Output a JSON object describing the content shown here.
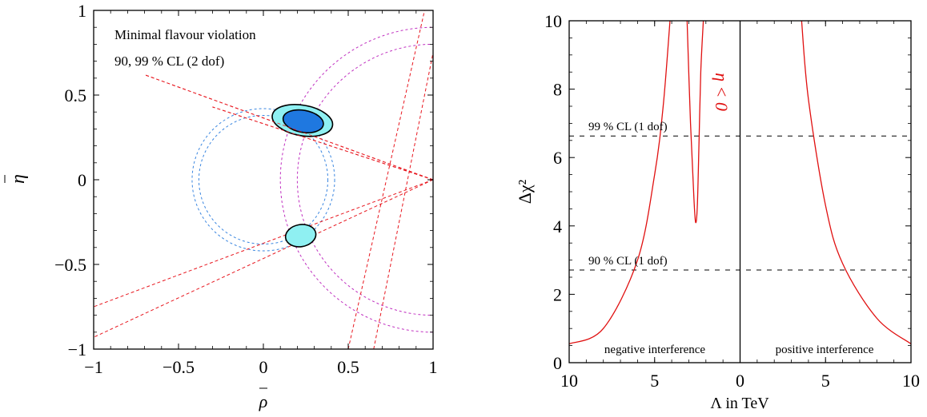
{
  "chart_data": [
    {
      "type": "scatter",
      "xlabel": "ρ",
      "ylabel": "η",
      "xlim": [
        -1,
        1
      ],
      "ylim": [
        -1,
        1
      ],
      "x_ticks": [
        -1,
        -0.5,
        0,
        0.5,
        1
      ],
      "y_ticks": [
        -1,
        -0.5,
        0,
        0.5,
        1
      ],
      "x_tick_labels": [
        "−1",
        "−0.5",
        "0",
        "0.5",
        "1"
      ],
      "y_tick_labels": [
        "−1",
        "−0.5",
        "0",
        "0.5",
        "1"
      ],
      "annotations": [
        "Minimal flavour violation",
        "90,  99 % CL (2 dof)"
      ],
      "grid": false,
      "colors": {
        "inner_region": "#1f78e0",
        "outer_region": "#8ff0f2",
        "constraint_red": "#e8171f",
        "constraint_blue": "#3a86e0",
        "constraint_magenta": "#c030c0"
      },
      "regions": [
        {
          "cl": "99%",
          "center": [
            0.23,
            0.35
          ],
          "rx": 0.18,
          "ry": 0.09
        },
        {
          "cl": "90%",
          "center": [
            0.235,
            0.345
          ],
          "rx": 0.12,
          "ry": 0.065
        },
        {
          "cl": "99%",
          "center": [
            0.22,
            -0.33
          ],
          "rx": 0.09,
          "ry": 0.065
        }
      ],
      "constraint_lines": [
        {
          "from": [
            1,
            0
          ],
          "to": [
            -0.7,
            0.62
          ]
        },
        {
          "from": [
            1,
            0
          ],
          "to": [
            -0.3,
            0.43
          ]
        },
        {
          "from": [
            1,
            0
          ],
          "to": [
            -1,
            -0.75
          ]
        },
        {
          "from": [
            1,
            0
          ],
          "to": [
            -1,
            -0.93
          ]
        },
        {
          "from": [
            0.5,
            -1
          ],
          "to": [
            0.95,
            1
          ]
        },
        {
          "from": [
            0.65,
            -1
          ],
          "to": [
            1,
            0.75
          ]
        }
      ],
      "constraint_circles": [
        {
          "center": [
            0,
            0
          ],
          "r": 0.42,
          "color": "blue"
        },
        {
          "center": [
            0,
            0
          ],
          "r": 0.38,
          "color": "blue"
        },
        {
          "center": [
            1,
            0
          ],
          "r": 0.8,
          "color": "magenta"
        },
        {
          "center": [
            1,
            0
          ],
          "r": 0.9,
          "color": "magenta"
        }
      ]
    },
    {
      "type": "line",
      "xlabel": "Λ in TeV",
      "ylabel": "Δχ²",
      "xlim": [
        -10,
        10
      ],
      "ylim": [
        0,
        10
      ],
      "x_ticks": [
        -10,
        -5,
        0,
        5,
        10
      ],
      "x_tick_labels": [
        "10",
        "5",
        "0",
        "5",
        "10"
      ],
      "y_ticks": [
        0,
        2,
        4,
        6,
        8,
        10
      ],
      "y_tick_labels": [
        "0",
        "2",
        "4",
        "6",
        "8",
        "10"
      ],
      "grid": false,
      "series": [
        {
          "color": "#e01010",
          "x": [
            -10,
            -8,
            -6,
            -5,
            -4.5,
            -4.1
          ],
          "y": [
            0.55,
            1.0,
            3.0,
            5.5,
            7.5,
            10
          ]
        },
        {
          "color": "#e01010",
          "x": [
            -3.1,
            -2.9,
            -2.7,
            -2.6,
            -2.5,
            -2.4,
            -2.3,
            -2.15
          ],
          "y": [
            10,
            7.0,
            4.8,
            4.1,
            4.6,
            6.5,
            8.5,
            10
          ]
        },
        {
          "color": "#e01010",
          "x": [
            3.6,
            4.0,
            5,
            6,
            8,
            10
          ],
          "y": [
            10,
            7.7,
            4.6,
            2.9,
            1.3,
            0.55
          ]
        }
      ],
      "reference_lines": [
        {
          "y": 6.63,
          "label": "99 % CL (1 dof)"
        },
        {
          "y": 2.71,
          "label": "90 % CL (1 dof)"
        }
      ],
      "annotations": [
        "η < 0",
        "negative interference",
        "positive interference"
      ]
    }
  ]
}
